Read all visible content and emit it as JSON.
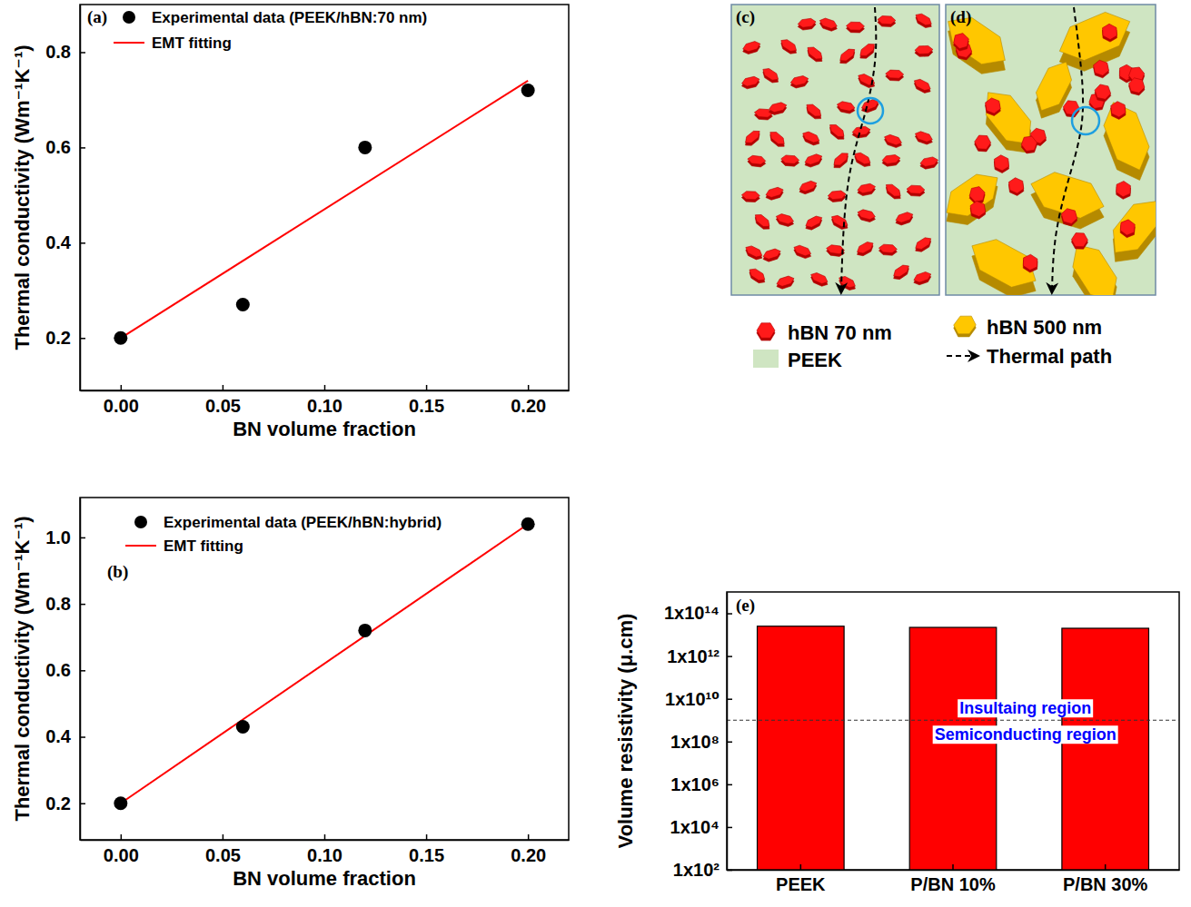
{
  "chart_data": [
    {
      "type": "scatter",
      "panel_label": "(a)",
      "x_label": "BN volume fraction",
      "y_label": "Thermal conductivity (Wm⁻¹K⁻¹)",
      "xlim": [
        -0.02,
        0.22
      ],
      "xticks": [
        {
          "value": 0,
          "label": "0.00"
        },
        {
          "value": 0.05,
          "label": "0.05"
        },
        {
          "value": 0.1,
          "label": "0.10"
        },
        {
          "value": 0.15,
          "label": "0.15"
        },
        {
          "value": 0.2,
          "label": "0.20"
        }
      ],
      "ylim": [
        0.09,
        0.9
      ],
      "yticks": [
        0.2,
        0.4,
        0.6,
        0.8
      ],
      "grid": false,
      "legend": "upper left",
      "series": [
        {
          "name": "Experimental data (PEEK/hBN:70 nm)",
          "type": "scatter",
          "marker": "circle",
          "color": "#000000",
          "x": [
            0,
            0.06,
            0.12,
            0.2
          ],
          "values": [
            0.2,
            0.27,
            0.6,
            0.72
          ]
        },
        {
          "name": "EMT fitting",
          "type": "line",
          "line_style": "solid",
          "color": "#ff0000",
          "x": [
            0,
            0.2
          ],
          "values": [
            0.2,
            0.74
          ]
        }
      ]
    },
    {
      "type": "scatter",
      "panel_label": "(b)",
      "x_label": "BN volume fraction",
      "y_label": "Thermal conductivity (Wm⁻¹K⁻¹)",
      "xlim": [
        -0.02,
        0.22
      ],
      "xticks": [
        {
          "value": 0,
          "label": "0.00"
        },
        {
          "value": 0.05,
          "label": "0.05"
        },
        {
          "value": 0.1,
          "label": "0.10"
        },
        {
          "value": 0.15,
          "label": "0.15"
        },
        {
          "value": 0.2,
          "label": "0.20"
        }
      ],
      "ylim": [
        0.09,
        1.12
      ],
      "yticks": [
        0.2,
        0.4,
        0.6,
        0.8,
        {
          "value": 1,
          "label": "1.0"
        }
      ],
      "grid": false,
      "legend": "upper left",
      "series": [
        {
          "name": "Experimental data (PEEK/hBN:hybrid)",
          "type": "scatter",
          "marker": "circle",
          "color": "#000000",
          "x": [
            0,
            0.06,
            0.12,
            0.2
          ],
          "values": [
            0.2,
            0.43,
            0.72,
            1.04
          ]
        },
        {
          "name": "EMT fitting",
          "type": "line",
          "line_style": "solid",
          "color": "#ff0000",
          "x": [
            0,
            0.2
          ],
          "values": [
            0.2,
            1.04
          ]
        }
      ]
    },
    {
      "type": "bar",
      "panel_label": "(e)",
      "y_label": "Volume resistivity (μ.cm)",
      "categories": [
        "PEEK",
        "P/BN 10%",
        "P/BN 30%"
      ],
      "values": [
        25000000000000.0,
        22000000000000.0,
        20000000000000.0
      ],
      "color": "#ff0000",
      "log": "y",
      "ylim": [
        100,
        1000000000000000.0
      ],
      "yticks": [
        {
          "value": 100,
          "label": "1x10²"
        },
        {
          "value": 10000.0,
          "label": "1x10⁴"
        },
        {
          "value": 1000000.0,
          "label": "1x10⁶"
        },
        {
          "value": 100000000.0,
          "label": "1x10⁸"
        },
        {
          "value": 10000000000.0,
          "label": "1x10¹⁰"
        },
        {
          "value": 1000000000000.0,
          "label": "1x10¹²"
        },
        {
          "value": 100000000000000.0,
          "label": "1x10¹⁴"
        }
      ],
      "grid": false,
      "reference_line": {
        "value": 1000000000.0,
        "line_style": "dashed"
      },
      "annotations": [
        {
          "text": "Insultaing region",
          "color": "#0000ff"
        },
        {
          "text": "Semiconducting region",
          "color": "#0000ff"
        }
      ]
    }
  ],
  "diagram": {
    "panels": [
      {
        "label": "(c)"
      },
      {
        "label": "(d)"
      }
    ],
    "legend": [
      {
        "text": "hBN 70 nm"
      },
      {
        "text": "PEEK"
      },
      {
        "text": "hBN 500 nm"
      },
      {
        "text": "Thermal path"
      }
    ]
  }
}
